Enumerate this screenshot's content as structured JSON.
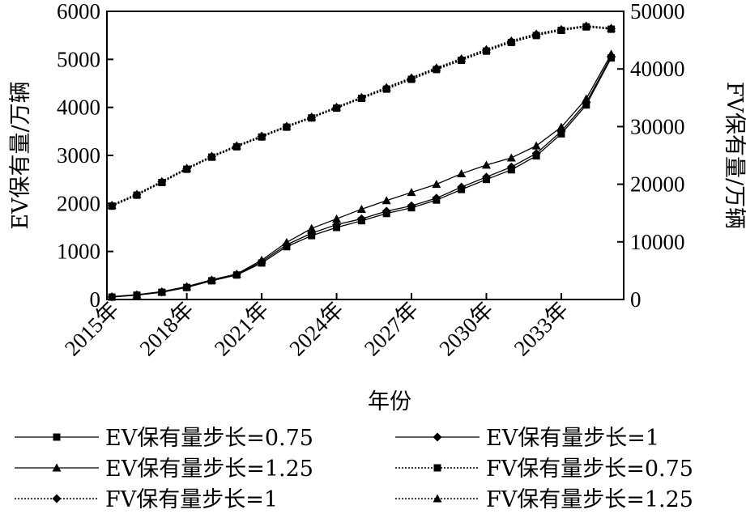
{
  "chart_data": {
    "type": "line",
    "xlabel": "年份",
    "ylabel_left": "EV保有量/万辆",
    "ylabel_right": "FV保有量/万辆",
    "x": [
      2015,
      2016,
      2017,
      2018,
      2019,
      2020,
      2021,
      2022,
      2023,
      2024,
      2025,
      2026,
      2027,
      2028,
      2029,
      2030,
      2031,
      2032,
      2033,
      2034,
      2035
    ],
    "x_ticks": [
      2015,
      2018,
      2021,
      2024,
      2027,
      2030,
      2033
    ],
    "x_tick_suffix": "年",
    "xlim": [
      2014.8,
      2035.5
    ],
    "ylim_left": [
      0,
      6000
    ],
    "ylim_right": [
      0,
      50000
    ],
    "yticks_left": [
      0,
      1000,
      2000,
      3000,
      4000,
      5000,
      6000
    ],
    "yticks_right": [
      0,
      10000,
      20000,
      30000,
      40000,
      50000
    ],
    "grid": false,
    "legend_position": "bottom",
    "series": [
      {
        "name": "EV保有量步长=0.75",
        "axis": "left",
        "marker": "square",
        "line": "solid",
        "values": [
          50,
          90,
          150,
          250,
          390,
          510,
          760,
          1100,
          1330,
          1500,
          1640,
          1790,
          1910,
          2070,
          2290,
          2500,
          2700,
          2990,
          3450,
          4050,
          5030
        ]
      },
      {
        "name": "EV保有量步长=1",
        "axis": "left",
        "marker": "diamond",
        "line": "solid",
        "values": [
          55,
          95,
          155,
          260,
          400,
          520,
          790,
          1140,
          1380,
          1560,
          1680,
          1840,
          1950,
          2110,
          2340,
          2550,
          2760,
          3040,
          3500,
          4100,
          5060
        ]
      },
      {
        "name": "EV保有量步长=1.25",
        "axis": "left",
        "marker": "triangle",
        "line": "solid",
        "values": [
          60,
          100,
          165,
          270,
          410,
          530,
          820,
          1190,
          1480,
          1680,
          1880,
          2060,
          2230,
          2400,
          2620,
          2800,
          2950,
          3200,
          3590,
          4180,
          5110
        ]
      },
      {
        "name": "FV保有量步长=0.75",
        "axis": "right",
        "marker": "square",
        "line": "dotted",
        "values": [
          16200,
          18100,
          20300,
          22600,
          24700,
          26500,
          28200,
          29900,
          31500,
          33200,
          34900,
          36500,
          38200,
          39900,
          41500,
          43100,
          44600,
          45800,
          46700,
          47300,
          46900
        ]
      },
      {
        "name": "FV保有量步长=1",
        "axis": "right",
        "marker": "diamond",
        "line": "dotted",
        "values": [
          16300,
          18200,
          20400,
          22700,
          24800,
          26600,
          28300,
          30000,
          31600,
          33300,
          35000,
          36700,
          38400,
          40100,
          41700,
          43300,
          44800,
          46000,
          46800,
          47400,
          47000
        ]
      },
      {
        "name": "FV保有量步长=1.25",
        "axis": "right",
        "marker": "triangle",
        "line": "dotted",
        "values": [
          16400,
          18300,
          20500,
          22800,
          24900,
          26700,
          28400,
          30100,
          31700,
          33400,
          35100,
          36800,
          38500,
          40200,
          41800,
          43400,
          44900,
          46100,
          46900,
          47500,
          47100
        ]
      }
    ]
  }
}
